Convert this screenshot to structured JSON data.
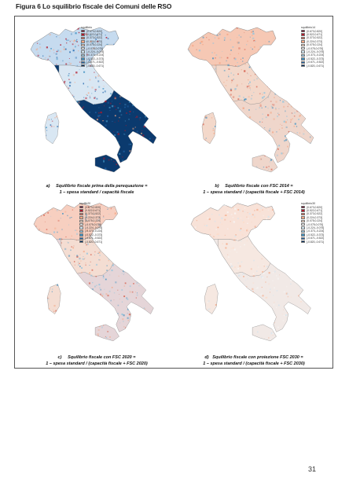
{
  "figure_title": "Figura 6 Lo squilibrio fiscale dei Comuni delle RSO",
  "page_number": "31",
  "legend_title_a": "squilibrio",
  "legend_title_b": "squilibrio14",
  "legend_title_c": "squilib20",
  "legend_title_d": "squilibrio30",
  "legend_items": [
    {
      "label": "(0.673,0.820]",
      "color": "#67001f"
    },
    {
      "label": "(0.522,0.671]",
      "color": "#b2182b"
    },
    {
      "label": "(0.373,0.522]",
      "color": "#d6604d"
    },
    {
      "label": "(0.224,0.373]",
      "color": "#f4a582"
    },
    {
      "label": "(0.075,0.224]",
      "color": "#fddbc7"
    },
    {
      "label": "(-0.075,0.075]",
      "color": "#f7f7f7"
    },
    {
      "label": "(-0.224,-0.075]",
      "color": "#d1e5f0"
    },
    {
      "label": "(-0.373,-0.224]",
      "color": "#92c5de"
    },
    {
      "label": "(-0.522,-0.373]",
      "color": "#4393c3"
    },
    {
      "label": "(-0.671,-0.522]",
      "color": "#2166ac"
    },
    {
      "label": "[-0.820,-0.671]",
      "color": "#053061"
    }
  ],
  "captions": {
    "a_letter": "a)",
    "a_line1": "Squilibrio fiscale prima della perequazione =",
    "a_line2": "1 – spesa standard / capacità fiscale",
    "b_letter": "b)",
    "b_line1": "Squilibrio fiscale con FSC 2014 =",
    "b_line2": "1 – spesa standard / (capacità fiscale + FSC 2014)",
    "c_letter": "c)",
    "c_line1": "Squilibrio fiscale con FSC 2020 =",
    "c_line2": "1 – spesa standard / (capacità fiscale + FSC 2020)",
    "d_letter": "d)",
    "d_line1": "Squilibrio fiscale con proiezione FSC 2030 =",
    "d_line2": "1 – spesa standard / (capacità fiscale + FSC 2030)"
  },
  "map_styles": {
    "a": {
      "north": "#c6dbef",
      "center": "#d9e7f3",
      "south": "#0b3a6e",
      "accents": [
        "#b2182b",
        "#f4a582",
        "#2166ac",
        "#4393c3"
      ]
    },
    "b": {
      "north": "#f6c8b4",
      "center": "#f3d8ca",
      "south": "#efd6cb",
      "accents": [
        "#d6604d",
        "#92c5de",
        "#f4a582",
        "#4393c3"
      ]
    },
    "c": {
      "north": "#f7cfc0",
      "center": "#f4ddd2",
      "south": "#e5d5d8",
      "accents": [
        "#d6604d",
        "#92c5de",
        "#f4a582",
        "#4393c3"
      ]
    },
    "d": {
      "north": "#f8e2d8",
      "center": "#f6e8e1",
      "south": "#f1e9e6",
      "accents": [
        "#fddbc7",
        "#f4a582",
        "#d1e5f0",
        "#f7f7f7"
      ]
    }
  }
}
